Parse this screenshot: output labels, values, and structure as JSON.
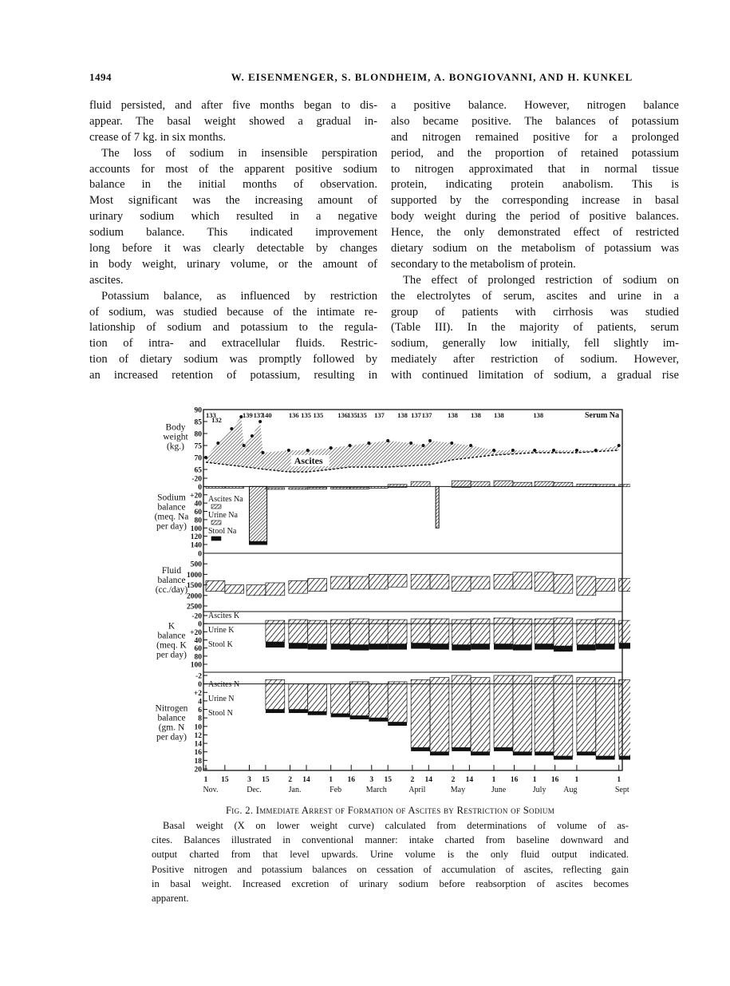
{
  "header": {
    "page_number": "1494",
    "authors": "W. EISENMENGER, S. BLONDHEIM, A. BONGIOVANNI, AND H. KUNKEL"
  },
  "left_column": [
    {
      "lines": [
        "fluid persisted, and after five months began to dis-",
        "appear.  The basal weight showed a gradual in-",
        "crease of 7 kg. in six months."
      ],
      "indent": false
    },
    {
      "lines": [
        "The loss of sodium in insensible perspiration",
        "accounts for most of the apparent positive sodium",
        "balance in the initial months of observation.",
        "Most significant was the increasing amount of",
        "urinary sodium which resulted in a negative",
        "sodium balance.  This indicated improvement",
        "long before it was clearly detectable by changes",
        "in body weight, urinary volume, or the amount of",
        "ascites."
      ],
      "indent": true
    },
    {
      "lines": [
        "Potassium balance, as influenced by restriction",
        "of sodium, was studied because of the intimate re-",
        "lationship of sodium and potassium to the regula-",
        "tion of intra- and extracellular fluids.  Restric-",
        "tion of dietary sodium was promptly followed by",
        "an increased retention of potassium, resulting in"
      ],
      "indent": true,
      "continues": true
    }
  ],
  "right_column": [
    {
      "lines": [
        "a positive balance.  However, nitrogen balance",
        "also became positive.  The balances of potassium",
        "and nitrogen remained positive for a prolonged",
        "period, and the proportion of retained potassium",
        "to nitrogen approximated that in normal tissue",
        "protein, indicating protein anabolism.  This is",
        "supported by the corresponding increase in basal",
        "body weight during the period of positive balances.",
        "Hence, the only demonstrated effect of restricted",
        "dietary sodium on the metabolism of potassium was",
        "secondary to the metabolism of protein."
      ],
      "indent": false
    },
    {
      "lines": [
        "The effect of prolonged restriction of sodium on",
        "the electrolytes of serum, ascites and urine in a",
        "group of patients with cirrhosis was studied",
        "(Table III).  In the majority of patients, serum",
        "sodium, generally low initially, fell slightly im-",
        "mediately after restriction of sodium.  However,",
        "with continued limitation of sodium, a gradual rise"
      ],
      "indent": true,
      "continues": true
    }
  ],
  "caption": {
    "title": "Fig. 2.  Immediate Arrest of Formation of Ascites by Restriction of Sodium",
    "lines": [
      "Basal weight (X on lower weight curve) calculated from determinations of volume of as-",
      "cites.  Balances illustrated in conventional manner: intake charted from baseline downward and",
      "output charted from that level upwards.  Urine volume is the only fluid output indicated.",
      "Positive nitrogen and potassium balances on cessation of accumulation of ascites, reflecting gain",
      "in basal weight.  Increased excretion of urinary sodium before reabsorption of ascites becomes",
      "apparent."
    ]
  },
  "chart_data": {
    "type": "area",
    "x_ticks": [
      {
        "day": "1",
        "month": "Nov.",
        "date": "Nov 1"
      },
      {
        "day": "15",
        "date": "Nov 15"
      },
      {
        "day": "3",
        "month": "Dec.",
        "date": "Dec 3"
      },
      {
        "day": "15",
        "date": "Dec 15"
      },
      {
        "day": "2",
        "month": "Jan.",
        "date": "Jan 2"
      },
      {
        "day": "14",
        "date": "Jan 14"
      },
      {
        "day": "1",
        "month": "Feb",
        "date": "Feb 1"
      },
      {
        "day": "16",
        "date": "Feb 16"
      },
      {
        "day": "3",
        "month": "March",
        "date": "Mar 3"
      },
      {
        "day": "15",
        "date": "Mar 15"
      },
      {
        "day": "2",
        "month": "April",
        "date": "Apr 2"
      },
      {
        "day": "14",
        "date": "Apr 14"
      },
      {
        "day": "2",
        "month": "May",
        "date": "May 2"
      },
      {
        "day": "14",
        "date": "May 14"
      },
      {
        "day": "1",
        "month": "June",
        "date": "Jun 1"
      },
      {
        "day": "16",
        "date": "Jun 16"
      },
      {
        "day": "1",
        "month": "July",
        "date": "Jul 1"
      },
      {
        "day": "16",
        "date": "Jul 16"
      },
      {
        "day": "1",
        "month": "Aug",
        "date": "Aug 1"
      },
      {
        "day": "1",
        "month": "Sept",
        "date": "Sep 1"
      }
    ],
    "dates": [
      "Nov 1",
      "Nov 15",
      "Dec 1",
      "Dec 15",
      "Jan 1",
      "Jan 15",
      "Feb 1",
      "Feb 15",
      "Mar 1",
      "Mar 15",
      "Apr 1",
      "Apr 15",
      "May 1",
      "May 15",
      "Jun 1",
      "Jun 15",
      "Jul 1",
      "Jul 15",
      "Aug 1",
      "Aug 15",
      "Sep 1"
    ],
    "serum_na": {
      "label": "Serum Na",
      "values": [
        {
          "date": "Nov 1",
          "v": "133"
        },
        {
          "date": "Nov 4",
          "v": "132"
        },
        {
          "date": "Nov 28",
          "v": "139"
        },
        {
          "date": "Dec 6",
          "v": "137"
        },
        {
          "date": "Dec 12",
          "v": "140"
        },
        {
          "date": "Jan 1",
          "v": "136"
        },
        {
          "date": "Jan 10",
          "v": "135"
        },
        {
          "date": "Jan 19",
          "v": "135"
        },
        {
          "date": "Feb 6",
          "v": "136"
        },
        {
          "date": "Feb 13",
          "v": "135"
        },
        {
          "date": "Feb 20",
          "v": "135"
        },
        {
          "date": "Mar 5",
          "v": "137"
        },
        {
          "date": "Mar 22",
          "v": "138"
        },
        {
          "date": "Apr 1",
          "v": "137"
        },
        {
          "date": "Apr 9",
          "v": "137"
        },
        {
          "date": "Apr 28",
          "v": "138"
        },
        {
          "date": "May 15",
          "v": "138"
        },
        {
          "date": "Jun 1",
          "v": "138"
        },
        {
          "date": "Jun 30",
          "v": "138"
        }
      ]
    },
    "panels": [
      {
        "id": "weight",
        "label": [
          "Body",
          "weight",
          "(kg.)"
        ],
        "ticks": [
          "90",
          "85",
          "80",
          "75",
          "70",
          "65"
        ],
        "range": [
          65,
          90
        ],
        "annotation": "Ascites",
        "weight": [
          [
            "Nov 1",
            70
          ],
          [
            "Nov 10",
            76
          ],
          [
            "Nov 20",
            82
          ],
          [
            "Nov 27",
            87
          ],
          [
            "Nov 29",
            75
          ],
          [
            "Dec 5",
            79
          ],
          [
            "Dec 11",
            85
          ],
          [
            "Dec 13",
            72
          ],
          [
            "Jan 1",
            73
          ],
          [
            "Jan 15",
            73
          ],
          [
            "Feb 1",
            74
          ],
          [
            "Feb 15",
            75
          ],
          [
            "Mar 1",
            76
          ],
          [
            "Mar 15",
            77
          ],
          [
            "Apr 1",
            76
          ],
          [
            "Apr 10",
            75
          ],
          [
            "Apr 15",
            77
          ],
          [
            "May 1",
            76
          ],
          [
            "May 15",
            75
          ],
          [
            "Jun 1",
            73
          ],
          [
            "Jun 15",
            73
          ],
          [
            "Jul 1",
            73
          ],
          [
            "Jul 15",
            73
          ],
          [
            "Aug 1",
            73
          ],
          [
            "Aug 15",
            73
          ],
          [
            "Sep 1",
            75
          ]
        ],
        "basal": [
          [
            "Nov 1",
            68
          ],
          [
            "Dec 1",
            66
          ],
          [
            "Dec 15",
            65
          ],
          [
            "Jan 1",
            64
          ],
          [
            "Jan 15",
            64
          ],
          [
            "Feb 1",
            65
          ],
          [
            "Feb 15",
            66
          ],
          [
            "Mar 15",
            66
          ],
          [
            "Apr 15",
            67
          ],
          [
            "May 1",
            69
          ],
          [
            "Jun 1",
            71
          ],
          [
            "Jul 1",
            72
          ],
          [
            "Aug 1",
            72
          ],
          [
            "Sep 1",
            73
          ]
        ]
      },
      {
        "id": "sodium",
        "label": [
          "Sodium",
          "balance",
          "(meq. Na",
          "per day)"
        ],
        "ticks": [
          "-20",
          "0",
          "+20",
          "40",
          "60",
          "80",
          "100",
          "120",
          "140"
        ],
        "range": [
          -20,
          140
        ],
        "legend": [
          "Ascites Na",
          "Urine Na",
          "Stool Na"
        ],
        "top": [
          0,
          0,
          140,
          3,
          3,
          2,
          2,
          2,
          0,
          -5,
          -12,
          -8,
          -14,
          -12,
          -14,
          -10,
          -12,
          -10,
          -6,
          -5,
          -5
        ],
        "bottom": [
          0,
          0,
          140,
          5,
          5,
          4,
          4,
          4,
          3,
          2,
          0,
          100,
          2,
          0,
          0,
          0,
          0,
          0,
          0,
          0,
          0
        ]
      },
      {
        "id": "fluid",
        "label": [
          "Fluid",
          "balance",
          "(cc./day)"
        ],
        "ticks": [
          "0",
          "500",
          "1000",
          "1500",
          "2000",
          "2500"
        ],
        "range": [
          0,
          2500
        ],
        "top": [
          1300,
          1500,
          1500,
          1400,
          1300,
          1200,
          1100,
          1100,
          1000,
          1000,
          1000,
          1000,
          1100,
          1100,
          1000,
          900,
          900,
          1000,
          1100,
          1200,
          1200
        ],
        "bottom": [
          1800,
          1900,
          2000,
          2000,
          1900,
          1800,
          1700,
          1700,
          1700,
          1600,
          1700,
          1700,
          1800,
          1700,
          1700,
          1700,
          1800,
          1900,
          2000,
          1800,
          1800
        ]
      },
      {
        "id": "potassium",
        "label": [
          "K",
          "balance",
          "(meq. K",
          "per day)"
        ],
        "ticks": [
          "-20",
          "0",
          "+20",
          "40",
          "60",
          "80",
          "100"
        ],
        "range": [
          -20,
          100
        ],
        "legend": [
          "Ascites K",
          "Urine K",
          "Stool K"
        ],
        "top": [
          null,
          null,
          null,
          -8,
          -10,
          -8,
          -10,
          -12,
          -10,
          -10,
          -12,
          -12,
          -10,
          -12,
          -14,
          -12,
          -12,
          -14,
          -10,
          -12,
          -8
        ],
        "bottom": [
          null,
          null,
          null,
          45,
          48,
          50,
          50,
          52,
          50,
          50,
          48,
          50,
          52,
          50,
          50,
          52,
          50,
          55,
          52,
          50,
          48
        ]
      },
      {
        "id": "nitrogen",
        "label": [
          "Nitrogen",
          "balance",
          "(gm. N",
          "per day)"
        ],
        "ticks": [
          "-2",
          "0",
          "+2",
          "4",
          "6",
          "8",
          "10",
          "12",
          "14",
          "16",
          "18",
          "20"
        ],
        "range": [
          -2,
          20
        ],
        "legend": [
          "Ascites N",
          "Urine N",
          "Stool N"
        ],
        "top": [
          null,
          null,
          null,
          -1,
          0,
          0,
          0,
          -0.5,
          0,
          -0.5,
          -1,
          -1.5,
          -2,
          -1.5,
          -2,
          -2,
          -1.5,
          -2,
          -1.5,
          -1.5,
          -1
        ],
        "bottom": [
          null,
          null,
          null,
          6,
          6,
          6.5,
          7,
          7.5,
          8,
          9,
          15,
          16,
          15,
          16,
          15,
          16,
          16,
          17,
          16,
          17,
          17
        ]
      }
    ]
  }
}
